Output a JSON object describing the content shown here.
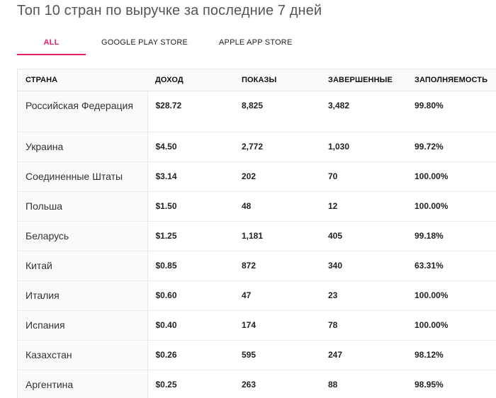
{
  "title": "Топ 10 стран по выручке за последние 7 дней",
  "tabs": [
    {
      "label": "ALL",
      "active": true
    },
    {
      "label": "GOOGLE PLAY STORE",
      "active": false
    },
    {
      "label": "APPLE APP STORE",
      "active": false
    }
  ],
  "accent_color": "#e51e6a",
  "table": {
    "headers": [
      "СТРАНА",
      "ДОХОД",
      "ПОКАЗЫ",
      "ЗАВЕРШЕННЫЕ",
      "ЗАПОЛНЯЕМОСТЬ"
    ],
    "rows": [
      [
        "Российская Федерация",
        "$28.72",
        "8,825",
        "3,482",
        "99.80%"
      ],
      [
        "Украина",
        "$4.50",
        "2,772",
        "1,030",
        "99.72%"
      ],
      [
        "Соединенные Штаты",
        "$3.14",
        "202",
        "70",
        "100.00%"
      ],
      [
        "Польша",
        "$1.50",
        "48",
        "12",
        "100.00%"
      ],
      [
        "Беларусь",
        "$1.25",
        "1,181",
        "405",
        "99.18%"
      ],
      [
        "Китай",
        "$0.85",
        "872",
        "340",
        "63.31%"
      ],
      [
        "Италия",
        "$0.60",
        "47",
        "23",
        "100.00%"
      ],
      [
        "Испания",
        "$0.40",
        "174",
        "78",
        "100.00%"
      ],
      [
        "Казахстан",
        "$0.26",
        "595",
        "247",
        "98.12%"
      ],
      [
        "Аргентина",
        "$0.25",
        "263",
        "88",
        "98.95%"
      ]
    ]
  }
}
